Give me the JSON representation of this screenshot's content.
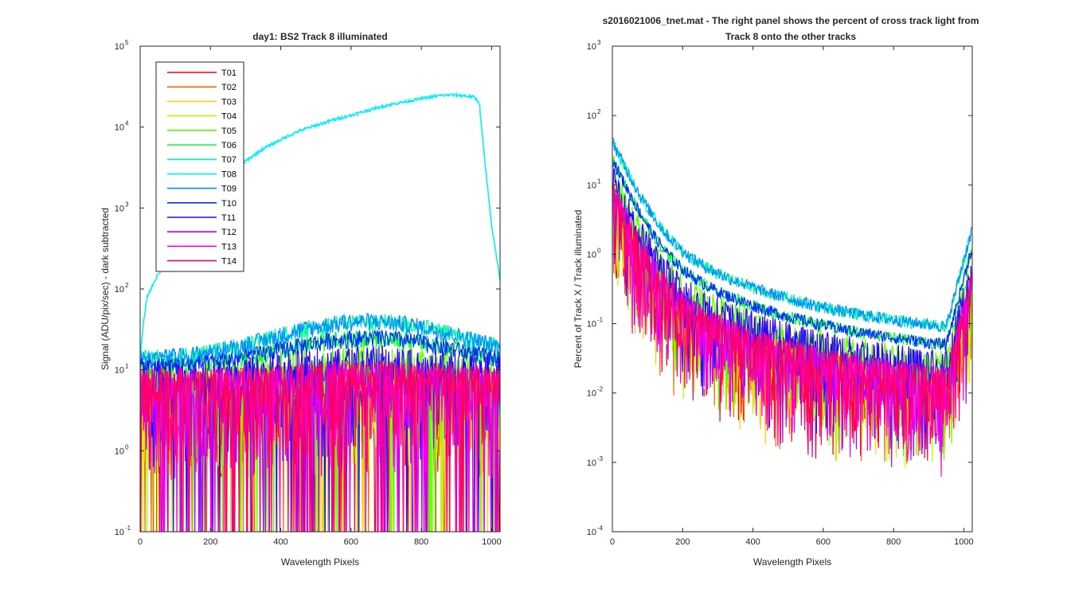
{
  "chart_data": [
    {
      "type": "line",
      "title": "day1: BS2  Track 8 illuminated",
      "xlabel": "Wavelength Pixels",
      "ylabel": "Signal (ADU/pix/sec) - dark subtracted",
      "yscale": "log",
      "xlim": [
        0,
        1024
      ],
      "ylim": [
        0.1,
        100000
      ],
      "xticks": [
        "0",
        "200",
        "400",
        "600",
        "800",
        "1000"
      ],
      "yticks": [
        {
          "base": "10",
          "exp": "-1"
        },
        {
          "base": "10",
          "exp": "0"
        },
        {
          "base": "10",
          "exp": "1"
        },
        {
          "base": "10",
          "exp": "2"
        },
        {
          "base": "10",
          "exp": "3"
        },
        {
          "base": "10",
          "exp": "4"
        },
        {
          "base": "10",
          "exp": "5"
        }
      ],
      "grid": false,
      "legend_position": "top-left",
      "series": [
        {
          "name": "T01",
          "color": "#ff0000"
        },
        {
          "name": "T02",
          "color": "#ff6a00"
        },
        {
          "name": "T03",
          "color": "#ffd000"
        },
        {
          "name": "T04",
          "color": "#b4ff00"
        },
        {
          "name": "T05",
          "color": "#5cff00"
        },
        {
          "name": "T06",
          "color": "#00ff30"
        },
        {
          "name": "T07",
          "color": "#00ffa0"
        },
        {
          "name": "T08",
          "color": "#00f0ff",
          "x": [
            0,
            10,
            20,
            50,
            100,
            150,
            200,
            250,
            300,
            350,
            400,
            450,
            500,
            550,
            600,
            650,
            700,
            750,
            800,
            850,
            880,
            920,
            950,
            965,
            980,
            1000,
            1024
          ],
          "values": [
            15,
            40,
            80,
            150,
            280,
            600,
            1200,
            2500,
            3800,
            5400,
            7000,
            8900,
            10500,
            12300,
            14000,
            16200,
            18500,
            20500,
            22500,
            24500,
            25000,
            24500,
            23500,
            20000,
            4000,
            600,
            130
          ]
        },
        {
          "name": "T09",
          "color": "#0090ff"
        },
        {
          "name": "T10",
          "color": "#0030ff"
        },
        {
          "name": "T11",
          "color": "#3000ff"
        },
        {
          "name": "T12",
          "color": "#b000ff"
        },
        {
          "name": "T13",
          "color": "#ff00e0"
        },
        {
          "name": "T14",
          "color": "#ff0060"
        }
      ]
    },
    {
      "type": "line",
      "title": "s2016021006_tnet.mat - The right panel shows the percent of cross track light from",
      "subtitle": "Track 8 onto the other tracks",
      "xlabel": "Wavelength Pixels",
      "ylabel": "Percent of Track X / Track illuminated",
      "yscale": "log",
      "xlim": [
        0,
        1024
      ],
      "ylim": [
        0.0001,
        1000
      ],
      "xticks": [
        "0",
        "200",
        "400",
        "600",
        "800",
        "1000"
      ],
      "yticks": [
        {
          "base": "10",
          "exp": "-4"
        },
        {
          "base": "10",
          "exp": "-3"
        },
        {
          "base": "10",
          "exp": "-2"
        },
        {
          "base": "10",
          "exp": "-1"
        },
        {
          "base": "10",
          "exp": "0"
        },
        {
          "base": "10",
          "exp": "1"
        },
        {
          "base": "10",
          "exp": "2"
        },
        {
          "base": "10",
          "exp": "3"
        }
      ],
      "grid": false,
      "series_colors_same_as_left": true
    }
  ]
}
